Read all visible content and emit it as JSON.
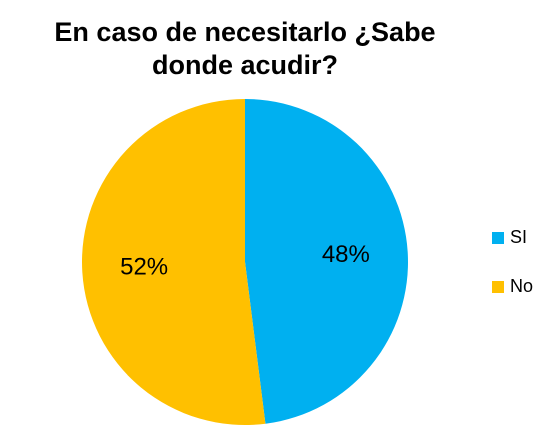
{
  "chart_data": {
    "type": "pie",
    "title_line1": "En caso de necesitarlo ¿Sabe",
    "title_line2": "donde acudir?",
    "categories": [
      "SI",
      "No"
    ],
    "values": [
      48,
      52
    ],
    "data_labels": [
      "48%",
      "52%"
    ],
    "colors": [
      "#00B0F0",
      "#FFC000"
    ],
    "legend_position": "right"
  }
}
